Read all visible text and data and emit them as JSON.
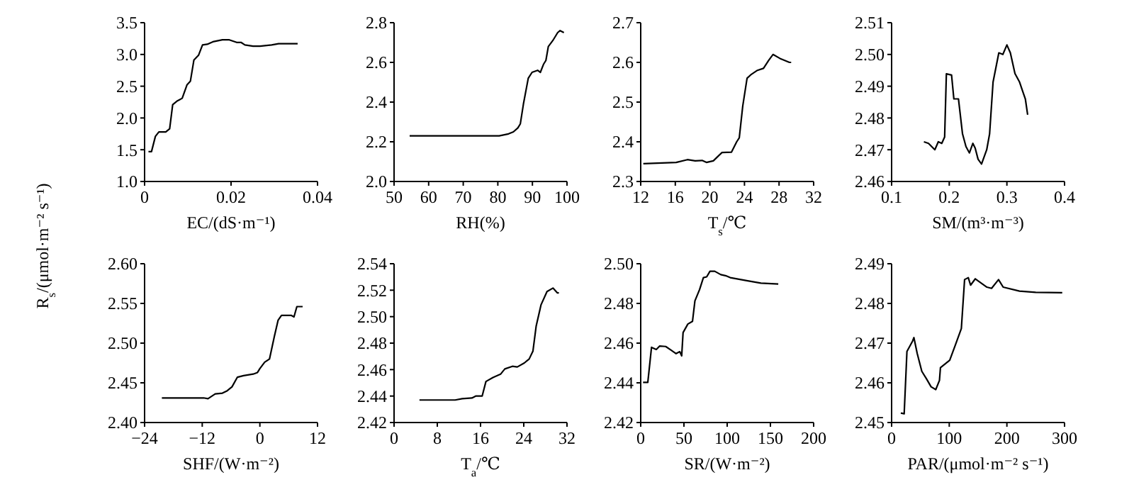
{
  "chart_data": [
    {
      "type": "line",
      "xlabel": "EC/(dS·m⁻¹)",
      "ylabel": "R$_{s}$/(μmol·m⁻² s⁻¹)",
      "color": "#000000",
      "xlim": [
        0,
        0.04
      ],
      "xticks": [
        0,
        0.02,
        0.04
      ],
      "ylim": [
        1,
        3.5
      ],
      "yticks": [
        {
          "value": 1,
          "label": "1.0"
        },
        1.5,
        {
          "value": 2,
          "label": "2.0"
        },
        2.5,
        {
          "value": 3,
          "label": "3.0"
        },
        3.5
      ],
      "x": [
        0.0009,
        0.0016,
        0.0025,
        0.0033,
        0.0049,
        0.0058,
        0.0065,
        0.0076,
        0.0087,
        0.0098,
        0.0106,
        0.0114,
        0.0125,
        0.0134,
        0.0145,
        0.0158,
        0.018,
        0.0196,
        0.0213,
        0.0223,
        0.0232,
        0.0251,
        0.0267,
        0.0294,
        0.031,
        0.0354
      ],
      "values": [
        1.47,
        1.47,
        1.71,
        1.78,
        1.78,
        1.83,
        2.21,
        2.27,
        2.31,
        2.52,
        2.58,
        2.91,
        2.99,
        3.15,
        3.16,
        3.2,
        3.23,
        3.23,
        3.19,
        3.19,
        3.15,
        3.13,
        3.13,
        3.15,
        3.17,
        3.17
      ]
    },
    {
      "type": "line",
      "xlabel": "RH(%)",
      "color": "#000000",
      "xlim": [
        50,
        100
      ],
      "xticks": [
        50,
        60,
        70,
        80,
        90,
        100
      ],
      "ylim": [
        2,
        2.8
      ],
      "yticks": [
        {
          "value": 2,
          "label": "2.0"
        },
        2.2,
        2.4,
        2.6,
        2.8
      ],
      "x": [
        54.5,
        80.4,
        83.1,
        84.5,
        85.8,
        86.5,
        87.4,
        88.8,
        89.9,
        91.5,
        92.3,
        93.2,
        93.9,
        94.6,
        95.9,
        97.3,
        98,
        99.1
      ],
      "values": [
        2.23,
        2.23,
        2.24,
        2.25,
        2.27,
        2.29,
        2.39,
        2.52,
        2.55,
        2.56,
        2.55,
        2.59,
        2.61,
        2.68,
        2.71,
        2.75,
        2.76,
        2.75
      ]
    },
    {
      "type": "line",
      "xlabel": "T$_{s}$/℃",
      "color": "#000000",
      "xlim": [
        12,
        32
      ],
      "xticks": [
        12,
        16,
        20,
        24,
        28,
        32
      ],
      "ylim": [
        2.3,
        2.7
      ],
      "yticks": [
        2.3,
        2.4,
        2.5,
        2.6,
        2.7
      ],
      "x": [
        12.3,
        16.1,
        17.4,
        18.3,
        19.1,
        19.6,
        20.4,
        21.4,
        22.5,
        23.1,
        23.4,
        23.8,
        24.3,
        24.8,
        25.5,
        26.2,
        26.8,
        27.3,
        28.1,
        29.2,
        29.4
      ],
      "values": [
        2.345,
        2.348,
        2.355,
        2.352,
        2.353,
        2.348,
        2.352,
        2.373,
        2.374,
        2.4,
        2.41,
        2.49,
        2.56,
        2.57,
        2.58,
        2.585,
        2.605,
        2.62,
        2.61,
        2.6,
        2.6
      ]
    },
    {
      "type": "line",
      "xlabel": "SM/(m³·m⁻³)",
      "color": "#000000",
      "xlim": [
        0.1,
        0.4
      ],
      "xticks": [
        0.1,
        0.2,
        0.3,
        0.4
      ],
      "ylim": [
        2.46,
        2.51
      ],
      "yticks": [
        2.46,
        2.47,
        2.48,
        2.49,
        {
          "value": 2.5,
          "label": "2.50"
        },
        2.51
      ],
      "x": [
        0.156,
        0.164,
        0.175,
        0.181,
        0.187,
        0.192,
        0.195,
        0.204,
        0.208,
        0.216,
        0.223,
        0.229,
        0.235,
        0.241,
        0.245,
        0.25,
        0.256,
        0.265,
        0.27,
        0.276,
        0.286,
        0.293,
        0.3,
        0.306,
        0.314,
        0.322,
        0.327,
        0.332,
        0.336
      ],
      "values": [
        2.4725,
        2.472,
        2.47,
        2.4725,
        2.472,
        2.474,
        2.4939,
        2.4935,
        2.486,
        2.486,
        2.475,
        2.471,
        2.469,
        2.472,
        2.4705,
        2.467,
        2.4655,
        2.47,
        2.475,
        2.4913,
        2.5005,
        2.5,
        2.503,
        2.5005,
        2.494,
        2.4913,
        2.4886,
        2.486,
        2.481
      ]
    },
    {
      "type": "line",
      "xlabel": "SHF/(W·m⁻²)",
      "color": "#000000",
      "xlim": [
        -24,
        12
      ],
      "xticks": [
        {
          "value": -24,
          "label": "−24"
        },
        {
          "value": -12,
          "label": "−12"
        },
        0,
        12
      ],
      "ylim": [
        2.4,
        2.6
      ],
      "yticks": [
        {
          "value": 2.4,
          "label": "2.40"
        },
        2.45,
        {
          "value": 2.5,
          "label": "2.50"
        },
        2.55,
        {
          "value": 2.6,
          "label": "2.60"
        }
      ],
      "x": [
        -20.4,
        -11.7,
        -10.8,
        -9.3,
        -7.8,
        -6.8,
        -5.8,
        -4.7,
        -3.4,
        -1.4,
        -0.5,
        0,
        1,
        2,
        3,
        3.8,
        4.5,
        6.5,
        7.1,
        7.7,
        8.9
      ],
      "values": [
        2.431,
        2.431,
        2.43,
        2.436,
        2.437,
        2.44,
        2.445,
        2.457,
        2.459,
        2.461,
        2.463,
        2.468,
        2.476,
        2.48,
        2.508,
        2.529,
        2.535,
        2.535,
        2.533,
        2.546,
        2.546
      ]
    },
    {
      "type": "line",
      "xlabel": "T$_{a}$/℃",
      "color": "#000000",
      "xlim": [
        0,
        32
      ],
      "xticks": [
        0,
        8,
        16,
        24,
        32
      ],
      "ylim": [
        2.42,
        2.54
      ],
      "yticks": [
        2.42,
        2.44,
        2.46,
        2.48,
        {
          "value": 2.5,
          "label": "2.50"
        },
        2.52,
        2.54
      ],
      "x": [
        4.7,
        11.3,
        12.6,
        14.4,
        15.1,
        16.3,
        17,
        18.3,
        19.7,
        20.5,
        21.9,
        22.8,
        24.1,
        25,
        25.7,
        26.3,
        27.2,
        28.3,
        29.4,
        30.2,
        30.5
      ],
      "values": [
        2.437,
        2.437,
        2.438,
        2.4385,
        2.44,
        2.44,
        2.451,
        2.454,
        2.4565,
        2.4605,
        2.4625,
        2.462,
        2.465,
        2.468,
        2.474,
        2.493,
        2.509,
        2.519,
        2.5216,
        2.518,
        2.518
      ]
    },
    {
      "type": "line",
      "xlabel": "SR/(W·m⁻²)",
      "color": "#000000",
      "xlim": [
        0,
        200
      ],
      "xticks": [
        0,
        50,
        100,
        150,
        200
      ],
      "ylim": [
        2.42,
        2.5
      ],
      "yticks": [
        2.42,
        2.44,
        2.46,
        2.48,
        {
          "value": 2.5,
          "label": "2.50"
        }
      ],
      "x": [
        2.7,
        8.2,
        12.5,
        18,
        21.8,
        28.9,
        35.4,
        40.9,
        45.2,
        47.4,
        49,
        54.5,
        59.9,
        62.7,
        68.1,
        72.5,
        76.3,
        80.1,
        85.6,
        92.6,
        98.1,
        103.5,
        122.6,
        139,
        159.1
      ],
      "values": [
        2.4402,
        2.4402,
        2.4579,
        2.4568,
        2.4585,
        2.4583,
        2.4564,
        2.4547,
        2.4557,
        2.4536,
        2.4653,
        2.4696,
        2.471,
        2.4813,
        2.487,
        2.493,
        2.4934,
        2.4962,
        2.4962,
        2.4945,
        2.494,
        2.493,
        2.4915,
        2.4902,
        2.4898
      ]
    },
    {
      "type": "line",
      "xlabel": "PAR/(μmol·m⁻² s⁻¹)",
      "color": "#000000",
      "xlim": [
        0,
        300
      ],
      "xticks": [
        0,
        100,
        200,
        300
      ],
      "ylim": [
        2.45,
        2.49
      ],
      "yticks": [
        2.45,
        2.46,
        2.47,
        2.48,
        2.49
      ],
      "x": [
        16,
        21.8,
        26.6,
        36.3,
        38.7,
        44.4,
        52.4,
        60.5,
        68.5,
        76.6,
        83,
        84.7,
        100.8,
        110.5,
        121,
        126.6,
        133,
        137,
        145.2,
        165.3,
        173.4,
        185.5,
        193.5,
        221.8,
        250,
        296
      ],
      "values": [
        2.4524,
        2.4522,
        2.4679,
        2.4705,
        2.4714,
        2.4674,
        2.4629,
        2.461,
        2.459,
        2.4583,
        2.4606,
        2.4638,
        2.4657,
        2.4695,
        2.4737,
        2.486,
        2.4865,
        2.4846,
        2.4862,
        2.4841,
        2.4838,
        2.486,
        2.4841,
        2.4831,
        2.4828,
        2.4827
      ]
    }
  ]
}
